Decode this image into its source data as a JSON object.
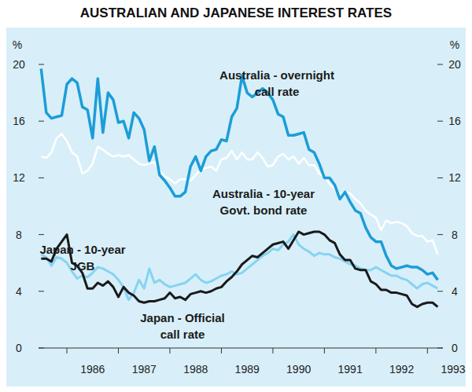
{
  "chart_data": {
    "type": "line",
    "title": "AUSTRALIAN AND JAPANESE INTEREST RATES",
    "ylabel": "%",
    "grid": false,
    "xlim": [
      1985.45,
      1993.3
    ],
    "xticks": [
      {
        "value": 1986,
        "label": "1986"
      },
      {
        "value": 1987,
        "label": "1987"
      },
      {
        "value": 1988,
        "label": "1988"
      },
      {
        "value": 1989,
        "label": "1989"
      },
      {
        "value": 1990,
        "label": "1990"
      },
      {
        "value": 1991,
        "label": "1991"
      },
      {
        "value": 1992,
        "label": "1992"
      },
      {
        "value": 1993,
        "label": "1993"
      }
    ],
    "ylim": [
      0,
      20
    ],
    "yticks": [
      0,
      4,
      8,
      12,
      16,
      20
    ],
    "x": [
      1985.5,
      1985.6,
      1985.7,
      1985.8,
      1985.9,
      1986.0,
      1986.1,
      1986.2,
      1986.3,
      1986.4,
      1986.5,
      1986.6,
      1986.7,
      1986.8,
      1986.9,
      1987.0,
      1987.1,
      1987.2,
      1987.3,
      1987.4,
      1987.5,
      1987.6,
      1987.7,
      1987.8,
      1987.9,
      1988.0,
      1988.1,
      1988.2,
      1988.3,
      1988.4,
      1988.5,
      1988.6,
      1988.7,
      1988.8,
      1988.9,
      1989.0,
      1989.1,
      1989.2,
      1989.3,
      1989.4,
      1989.5,
      1989.6,
      1989.7,
      1989.8,
      1989.9,
      1990.0,
      1990.1,
      1990.2,
      1990.3,
      1990.4,
      1990.5,
      1990.6,
      1990.7,
      1990.8,
      1990.9,
      1991.0,
      1991.1,
      1991.2,
      1991.3,
      1991.4,
      1991.5,
      1991.6,
      1991.7,
      1991.8,
      1991.9,
      1992.0,
      1992.1,
      1992.2,
      1992.3,
      1992.4,
      1992.5,
      1992.6,
      1992.7,
      1992.8,
      1992.9,
      1993.0,
      1993.1,
      1993.2
    ],
    "series": [
      {
        "name": "Australia - overnight call rate",
        "color": "#1c9dd8",
        "values": [
          19.7,
          16.6,
          16.2,
          16.3,
          16.4,
          18.6,
          19.0,
          18.7,
          17.0,
          16.8,
          14.8,
          19.0,
          15.2,
          18.0,
          17.5,
          15.9,
          16.0,
          14.8,
          16.6,
          16.2,
          15.4,
          13.2,
          14.2,
          12.2,
          11.8,
          11.3,
          10.7,
          10.7,
          11.0,
          12.8,
          13.5,
          12.5,
          13.5,
          13.9,
          14.0,
          14.7,
          14.6,
          16.3,
          16.9,
          19.2,
          18.0,
          17.7,
          18.0,
          18.3,
          18.0,
          17.5,
          16.5,
          16.3,
          15.0,
          15.0,
          15.1,
          15.2,
          14.0,
          13.8,
          13.0,
          12.0,
          12.0,
          11.5,
          10.5,
          11.0,
          10.3,
          9.7,
          9.5,
          8.5,
          7.8,
          7.5,
          7.5,
          6.5,
          5.8,
          5.6,
          5.7,
          5.8,
          5.7,
          5.7,
          5.5,
          5.2,
          5.3,
          4.8
        ]
      },
      {
        "name": "Australia - 10-year Govt. bond rate",
        "color": "#ffffff",
        "values": [
          13.5,
          13.4,
          13.8,
          14.8,
          15.1,
          14.6,
          13.8,
          13.5,
          12.3,
          12.5,
          13.0,
          14.2,
          14.0,
          13.7,
          13.5,
          13.6,
          13.5,
          13.6,
          13.3,
          13.0,
          12.9,
          13.0,
          13.1,
          12.5,
          12.1,
          11.9,
          11.6,
          11.9,
          11.9,
          11.8,
          12.2,
          12.6,
          12.7,
          12.8,
          12.5,
          13.3,
          13.4,
          13.9,
          13.3,
          13.8,
          13.3,
          13.3,
          13.8,
          13.4,
          12.8,
          12.9,
          13.5,
          13.7,
          13.3,
          13.5,
          13.0,
          13.4,
          12.9,
          12.9,
          12.3,
          12.1,
          11.6,
          11.2,
          10.8,
          11.0,
          10.9,
          10.5,
          10.2,
          9.7,
          9.4,
          9.2,
          8.3,
          9.0,
          8.8,
          8.9,
          8.8,
          8.6,
          8.1,
          7.9,
          7.9,
          7.5,
          7.6,
          6.6
        ]
      },
      {
        "name": "Japan - Official call rate",
        "color": "#1a1a1a",
        "values": [
          6.3,
          6.3,
          6.1,
          7.0,
          7.5,
          8.0,
          6.0,
          5.8,
          5.3,
          4.2,
          4.2,
          4.6,
          4.4,
          4.7,
          4.3,
          3.6,
          4.3,
          3.9,
          3.7,
          3.3,
          3.2,
          3.3,
          3.3,
          3.4,
          3.5,
          3.9,
          3.5,
          3.6,
          3.4,
          3.8,
          3.9,
          4.0,
          3.9,
          4.0,
          4.2,
          4.3,
          4.7,
          5.0,
          5.4,
          5.9,
          6.2,
          6.5,
          6.4,
          6.7,
          7.0,
          7.3,
          7.4,
          7.5,
          7.0,
          7.6,
          8.2,
          8.0,
          8.1,
          8.2,
          8.2,
          8.0,
          7.6,
          7.4,
          6.6,
          6.2,
          6.2,
          5.6,
          5.5,
          5.5,
          4.7,
          4.5,
          4.1,
          4.1,
          3.9,
          3.9,
          3.8,
          3.7,
          3.1,
          2.9,
          3.1,
          3.2,
          3.2,
          2.9
        ]
      },
      {
        "name": "Japan - 10-year JGB",
        "color": "#86d3f2",
        "values": [
          6.6,
          6.4,
          5.8,
          6.4,
          6.3,
          6.0,
          5.4,
          4.9,
          5.1,
          5.0,
          5.3,
          5.7,
          5.6,
          5.4,
          5.2,
          4.8,
          4.3,
          3.4,
          3.9,
          4.8,
          4.2,
          5.6,
          4.6,
          4.8,
          4.5,
          4.3,
          4.4,
          4.5,
          4.6,
          4.9,
          5.2,
          4.8,
          4.6,
          4.7,
          4.9,
          5.1,
          5.2,
          5.4,
          5.2,
          5.3,
          5.6,
          5.9,
          6.2,
          6.5,
          6.7,
          7.0,
          6.9,
          7.3,
          7.5,
          8.0,
          7.3,
          7.0,
          6.8,
          6.5,
          6.7,
          6.6,
          6.6,
          6.4,
          6.3,
          6.1,
          5.9,
          5.8,
          5.6,
          5.5,
          5.5,
          5.7,
          5.5,
          5.3,
          5.1,
          5.1,
          4.9,
          4.8,
          4.5,
          4.2,
          4.5,
          4.6,
          4.4,
          4.2
        ]
      }
    ]
  }
}
